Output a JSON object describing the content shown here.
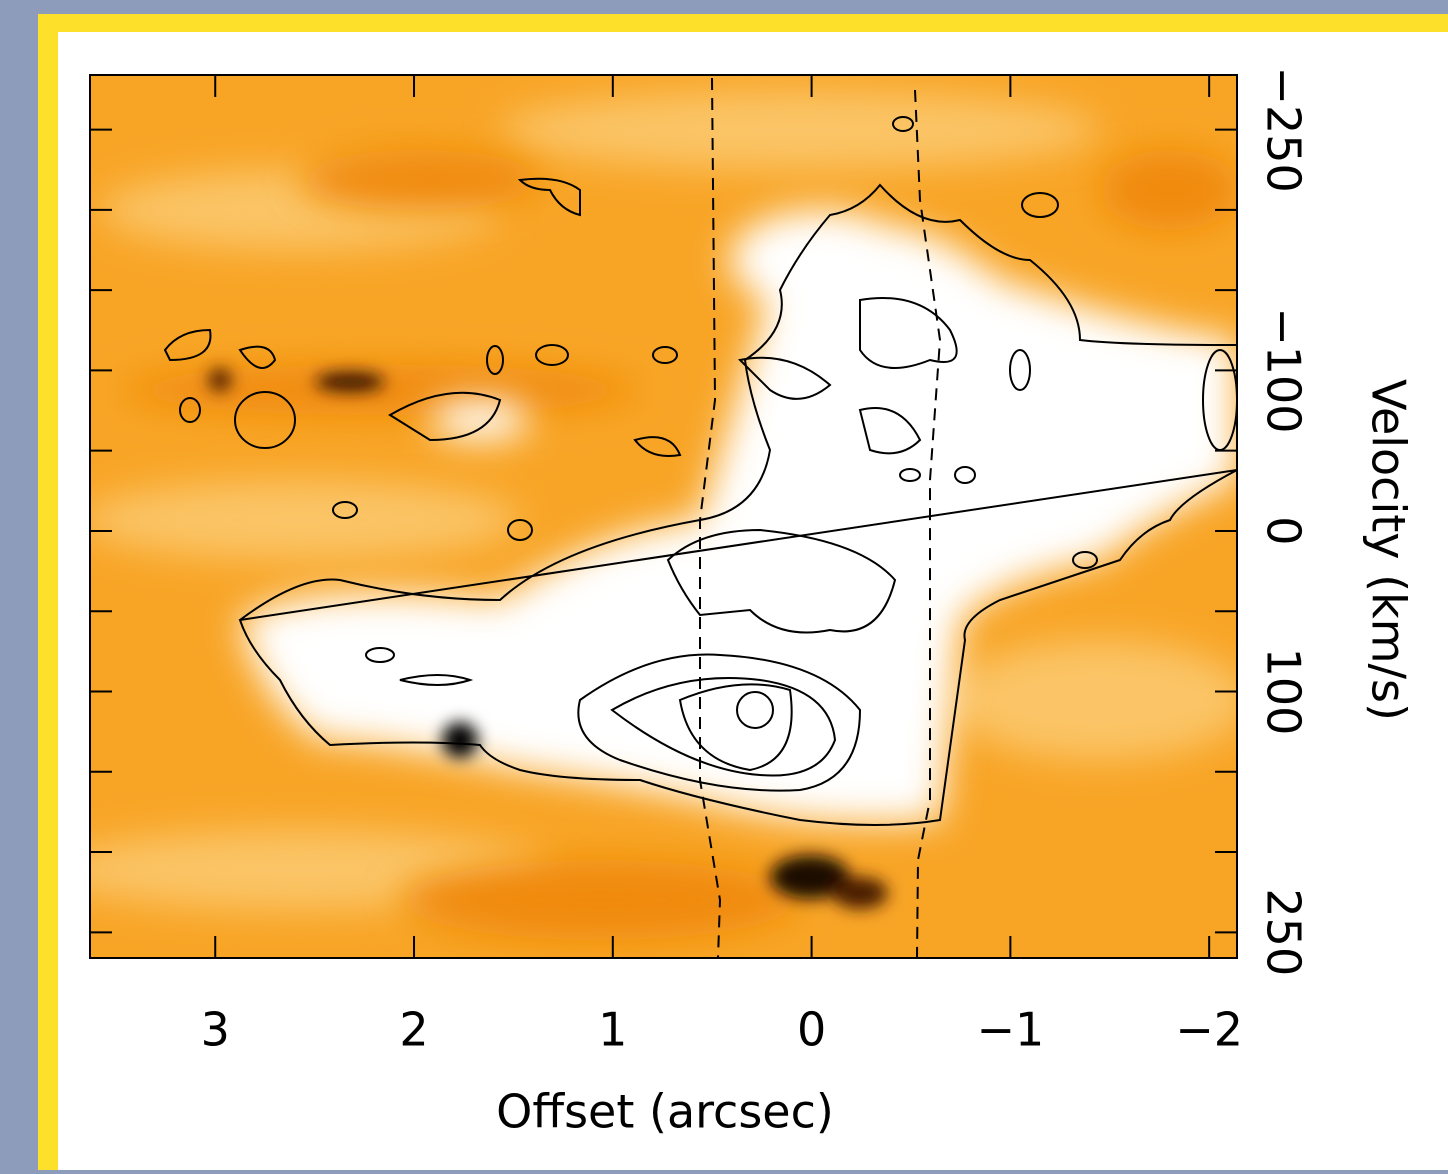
{
  "chart_data": {
    "type": "heatmap",
    "x_label": "Offset (arcsec)",
    "y_label": "Velocity (km/s)",
    "xlim": [
      3.63,
      -2.14
    ],
    "xticks": [
      3,
      2,
      1,
      0,
      {
        "value": -1,
        "label": "−1"
      },
      {
        "value": -2,
        "label": "−2"
      }
    ],
    "ylim": [
      -284,
      266
    ],
    "yticks": [
      {
        "value": -250,
        "label": "−250"
      },
      {
        "value": -100,
        "label": "−100"
      },
      0,
      100,
      250
    ],
    "yminorticks": [
      -200,
      -150,
      -50,
      50,
      150,
      200
    ]
  }
}
